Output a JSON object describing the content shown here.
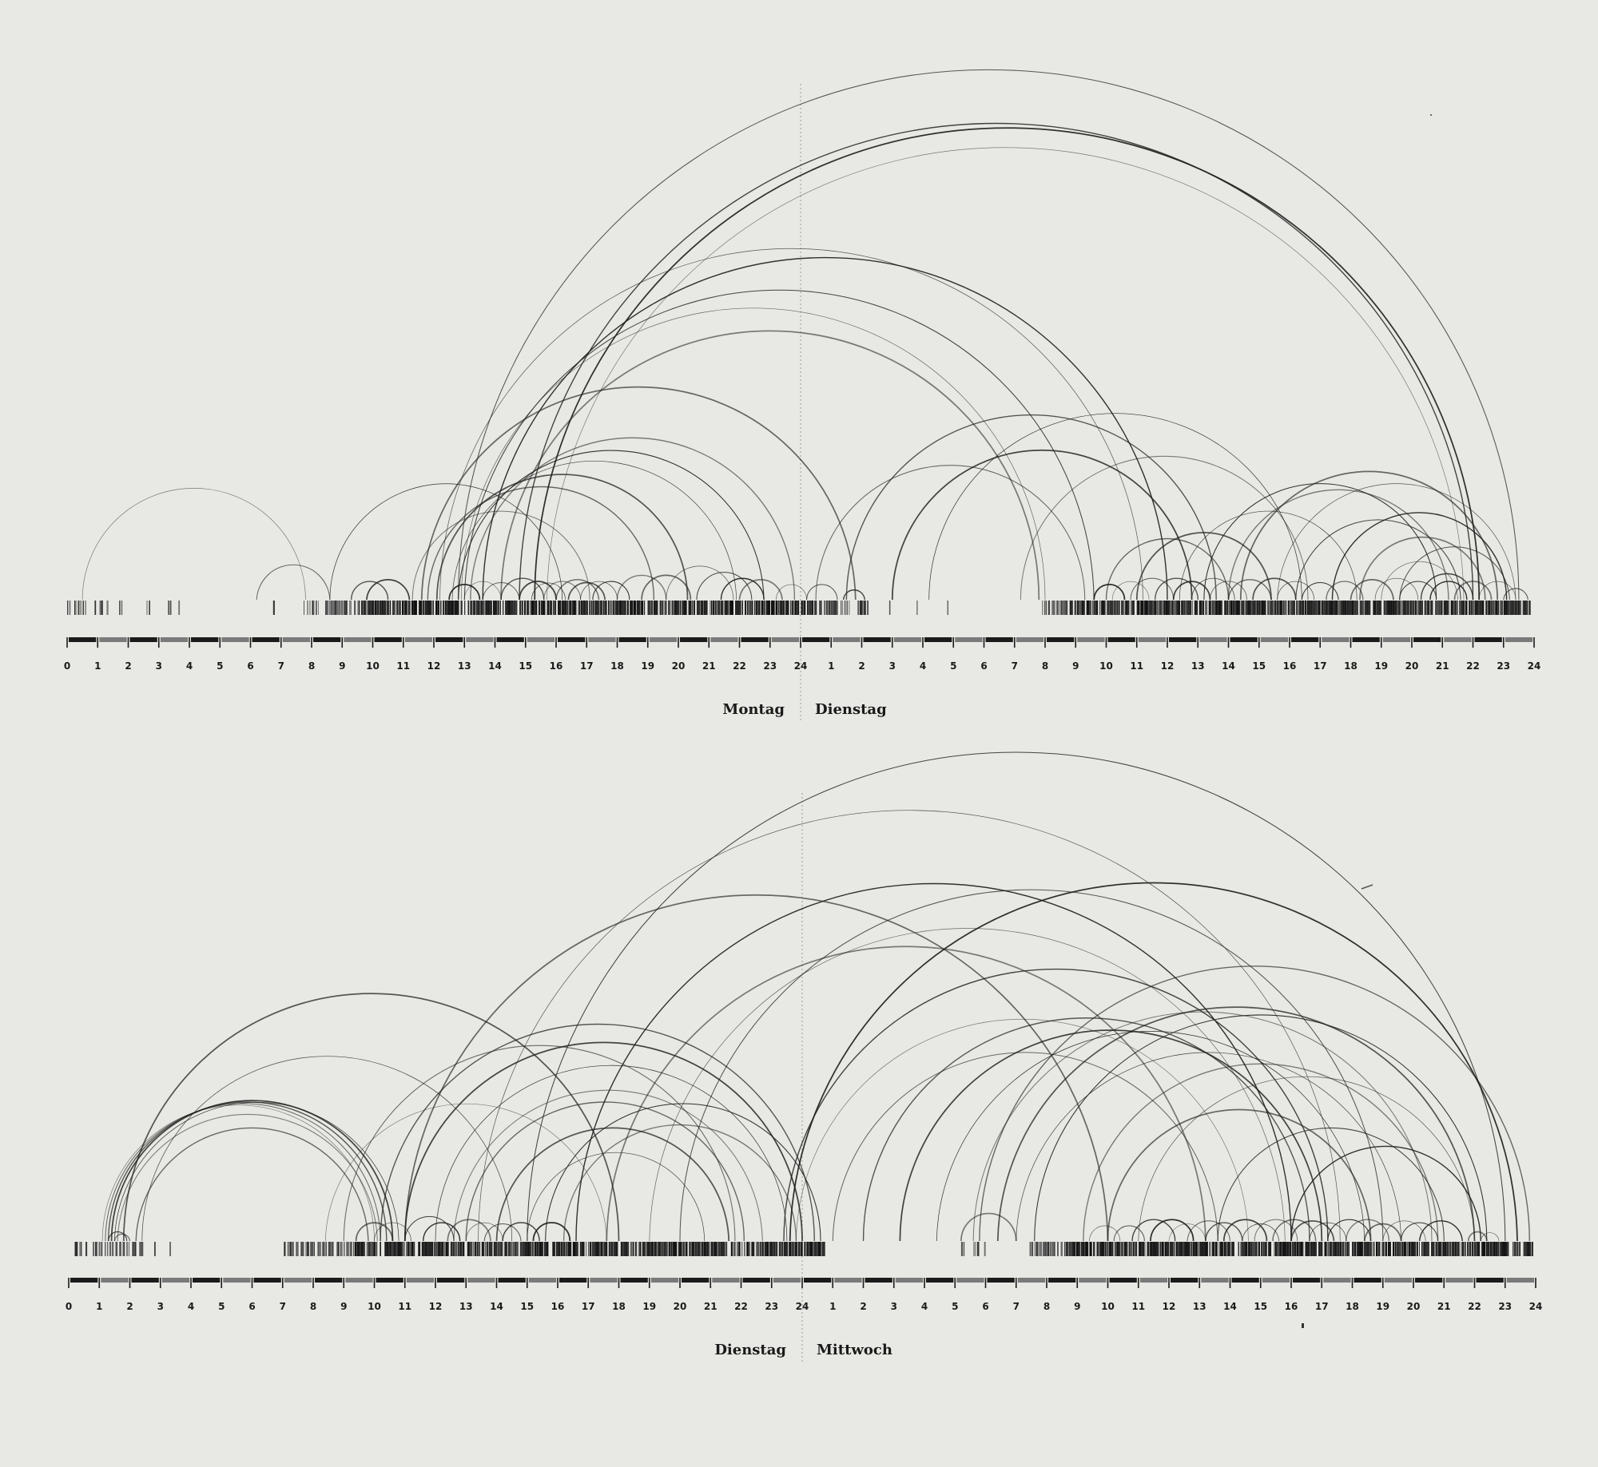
{
  "chart_data": [
    {
      "type": "arc",
      "days": [
        "Montag",
        "Dienstag"
      ],
      "x_unit": "hour",
      "x_range": [
        0,
        48
      ],
      "tick_labels": [
        "0",
        "1",
        "2",
        "3",
        "4",
        "5",
        "6",
        "7",
        "8",
        "9",
        "10",
        "11",
        "12",
        "13",
        "14",
        "15",
        "16",
        "17",
        "18",
        "19",
        "20",
        "21",
        "22",
        "23",
        "24",
        "1",
        "2",
        "3",
        "4",
        "5",
        "6",
        "7",
        "8",
        "9",
        "10",
        "11",
        "12",
        "13",
        "14",
        "15",
        "16",
        "17",
        "18",
        "19",
        "20",
        "21",
        "22",
        "23",
        "24"
      ],
      "arcs": [
        [
          0.5,
          7.8
        ],
        [
          6.2,
          8.6
        ],
        [
          9.3,
          10.5
        ],
        [
          9.8,
          11.2
        ],
        [
          8.6,
          16.2
        ],
        [
          11.3,
          17.1
        ],
        [
          11.8,
          19.2
        ],
        [
          12.1,
          20.3
        ],
        [
          12.6,
          21.9
        ],
        [
          12.8,
          22.8
        ],
        [
          13.2,
          23.8
        ],
        [
          11.6,
          25.8
        ],
        [
          12.2,
          35.2
        ],
        [
          13.0,
          33.6
        ],
        [
          13.6,
          36.0
        ],
        [
          14.2,
          31.8
        ],
        [
          12.9,
          32.0
        ],
        [
          12.8,
          47.5
        ],
        [
          14.8,
          46.0
        ],
        [
          15.3,
          46.2
        ],
        [
          15.7,
          45.7
        ],
        [
          24.5,
          33.3
        ],
        [
          25.5,
          37.6
        ],
        [
          27.0,
          36.8
        ],
        [
          28.2,
          40.4
        ],
        [
          31.2,
          40.6
        ],
        [
          34.0,
          38.0
        ],
        [
          35.0,
          39.4
        ],
        [
          36.4,
          42.2
        ],
        [
          37.2,
          44.8
        ],
        [
          38.0,
          45.2
        ],
        [
          38.4,
          46.8
        ],
        [
          39.6,
          47.4
        ],
        [
          40.2,
          45.6
        ],
        [
          41.4,
          47.1
        ],
        [
          42.3,
          46.4
        ],
        [
          43.0,
          45.5
        ],
        [
          43.6,
          47.2
        ],
        [
          44.3,
          46.0
        ],
        [
          12.5,
          13.5
        ],
        [
          13.0,
          14.2
        ],
        [
          13.6,
          14.8
        ],
        [
          14.2,
          15.6
        ],
        [
          14.8,
          16.0
        ],
        [
          15.2,
          16.3
        ],
        [
          15.6,
          16.8
        ],
        [
          16.0,
          17.4
        ],
        [
          16.4,
          17.6
        ],
        [
          16.8,
          18.0
        ],
        [
          17.2,
          18.4
        ],
        [
          18.0,
          19.6
        ],
        [
          18.8,
          20.4
        ],
        [
          19.6,
          21.8
        ],
        [
          20.6,
          22.4
        ],
        [
          21.4,
          22.8
        ],
        [
          22.0,
          23.4
        ],
        [
          23.2,
          24.2
        ],
        [
          24.2,
          25.2
        ],
        [
          25.4,
          26.1
        ],
        [
          33.6,
          34.6
        ],
        [
          34.2,
          35.4
        ],
        [
          34.8,
          36.2
        ],
        [
          35.6,
          37.0
        ],
        [
          36.2,
          37.4
        ],
        [
          36.8,
          38.2
        ],
        [
          37.4,
          38.6
        ],
        [
          38.0,
          39.4
        ],
        [
          38.8,
          40.2
        ],
        [
          39.6,
          40.8
        ],
        [
          40.4,
          41.6
        ],
        [
          41.2,
          42.4
        ],
        [
          42.0,
          43.4
        ],
        [
          42.8,
          44.2
        ],
        [
          43.6,
          44.8
        ],
        [
          44.6,
          45.8
        ],
        [
          45.4,
          46.6
        ],
        [
          46.2,
          47.4
        ],
        [
          47.0,
          47.8
        ]
      ],
      "activity": [
        [
          0,
          0.6
        ],
        [
          0.9,
          1.3
        ],
        [
          1.7,
          1.8
        ],
        [
          2.6,
          2.7
        ],
        [
          3.3,
          3.4
        ],
        [
          3.6,
          3.7
        ],
        [
          5.9,
          6.0
        ],
        [
          6.7,
          6.8
        ],
        [
          7.7,
          26.2
        ],
        [
          26.9,
          27.0
        ],
        [
          27.8,
          27.9
        ],
        [
          28.8,
          28.9
        ],
        [
          31.9,
          47.9
        ]
      ],
      "activity_dense": [
        [
          9.6,
          24.4
        ],
        [
          32.8,
          47.9
        ]
      ]
    },
    {
      "type": "arc",
      "days": [
        "Dienstag",
        "Mittwoch"
      ],
      "x_unit": "hour",
      "x_range": [
        0,
        48
      ],
      "tick_labels": [
        "0",
        "1",
        "2",
        "3",
        "4",
        "5",
        "6",
        "7",
        "8",
        "9",
        "10",
        "11",
        "12",
        "13",
        "14",
        "15",
        "16",
        "17",
        "18",
        "19",
        "20",
        "21",
        "22",
        "23",
        "24",
        "1",
        "2",
        "3",
        "4",
        "5",
        "6",
        "7",
        "8",
        "9",
        "10",
        "11",
        "12",
        "13",
        "14",
        "15",
        "16",
        "17",
        "18",
        "19",
        "20",
        "21",
        "22",
        "23",
        "24"
      ],
      "arcs": [
        [
          1.1,
          10.0
        ],
        [
          1.2,
          10.2
        ],
        [
          1.3,
          10.4
        ],
        [
          1.4,
          10.6
        ],
        [
          1.5,
          10.8
        ],
        [
          1.6,
          10.1
        ],
        [
          2.2,
          9.8
        ],
        [
          1.8,
          18.0
        ],
        [
          2.4,
          14.5
        ],
        [
          1.3,
          1.9
        ],
        [
          1.5,
          2.0
        ],
        [
          9.4,
          10.6
        ],
        [
          10.0,
          11.2
        ],
        [
          11.0,
          12.6
        ],
        [
          11.6,
          12.8
        ],
        [
          12.4,
          13.8
        ],
        [
          13.0,
          14.2
        ],
        [
          13.6,
          14.8
        ],
        [
          14.2,
          15.4
        ],
        [
          15.2,
          16.4
        ],
        [
          8.4,
          17.6
        ],
        [
          9.0,
          21.8
        ],
        [
          10.2,
          24.4
        ],
        [
          11.0,
          24.0
        ],
        [
          12.0,
          23.5
        ],
        [
          12.6,
          22.7
        ],
        [
          13.0,
          22.1
        ],
        [
          14.0,
          21.6
        ],
        [
          15.0,
          20.8
        ],
        [
          15.6,
          24.6
        ],
        [
          16.2,
          23.8
        ],
        [
          11.0,
          34.0
        ],
        [
          13.4,
          41.6
        ],
        [
          15.0,
          47.0
        ],
        [
          16.6,
          40.0
        ],
        [
          17.6,
          37.2
        ],
        [
          19.0,
          39.8
        ],
        [
          20.0,
          43.0
        ],
        [
          23.4,
          41.2
        ],
        [
          23.6,
          47.4
        ],
        [
          23.8,
          38.6
        ],
        [
          25.0,
          37.6
        ],
        [
          26.0,
          40.6
        ],
        [
          27.2,
          41.0
        ],
        [
          28.4,
          42.4
        ],
        [
          29.6,
          44.6
        ],
        [
          29.8,
          47.8
        ],
        [
          30.4,
          46.0
        ],
        [
          31.0,
          43.6
        ],
        [
          31.6,
          46.4
        ],
        [
          33.2,
          44.8
        ],
        [
          34.0,
          42.6
        ],
        [
          35.0,
          46.0
        ],
        [
          37.6,
          45.0
        ],
        [
          40.0,
          46.2
        ],
        [
          29.2,
          31.0
        ],
        [
          33.4,
          34.4
        ],
        [
          34.2,
          35.2
        ],
        [
          34.8,
          36.2
        ],
        [
          35.4,
          36.8
        ],
        [
          36.0,
          37.2
        ],
        [
          36.6,
          38.0
        ],
        [
          37.2,
          38.4
        ],
        [
          37.8,
          39.2
        ],
        [
          38.4,
          39.6
        ],
        [
          38.8,
          40.2
        ],
        [
          39.4,
          40.8
        ],
        [
          40.0,
          41.4
        ],
        [
          40.6,
          41.8
        ],
        [
          41.2,
          42.6
        ],
        [
          41.8,
          43.2
        ],
        [
          42.4,
          43.6
        ],
        [
          43.0,
          44.4
        ],
        [
          43.6,
          44.8
        ],
        [
          44.2,
          45.6
        ],
        [
          45.8,
          46.4
        ],
        [
          46.2,
          46.8
        ]
      ],
      "activity": [
        [
          0,
          2.2
        ],
        [
          2.3,
          2.4
        ],
        [
          2.8,
          2.9
        ],
        [
          3.3,
          3.4
        ],
        [
          4.6,
          4.7
        ],
        [
          7.0,
          24.8
        ],
        [
          28.6,
          28.7
        ],
        [
          29.2,
          29.3
        ],
        [
          29.6,
          30.0
        ],
        [
          31.4,
          47.9
        ]
      ],
      "activity_dense": [
        [
          9.3,
          24.6
        ],
        [
          32.6,
          47.9
        ]
      ]
    }
  ]
}
